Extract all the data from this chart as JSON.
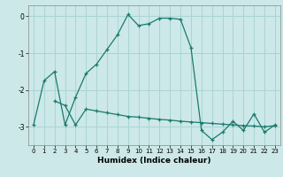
{
  "title": "",
  "xlabel": "Humidex (Indice chaleur)",
  "bg_color": "#cce8e8",
  "line_color": "#1a7a6e",
  "grid_color": "#aad4d4",
  "xlim": [
    -0.5,
    23.5
  ],
  "ylim": [
    -3.5,
    0.3
  ],
  "yticks": [
    0,
    -1,
    -2,
    -3
  ],
  "xticks": [
    0,
    1,
    2,
    3,
    4,
    5,
    6,
    7,
    8,
    9,
    10,
    11,
    12,
    13,
    14,
    15,
    16,
    17,
    18,
    19,
    20,
    21,
    22,
    23
  ],
  "line1_x": [
    0,
    1,
    2,
    3,
    4,
    5,
    6,
    7,
    8,
    9,
    10,
    11,
    12,
    13,
    14,
    15,
    16,
    17,
    18,
    19,
    20,
    21,
    22,
    23
  ],
  "line1_y": [
    -2.95,
    -1.75,
    -1.5,
    -2.95,
    -2.2,
    -1.55,
    -1.3,
    -0.9,
    -0.5,
    0.05,
    -0.25,
    -0.2,
    -0.05,
    -0.05,
    -0.08,
    -0.85,
    -3.1,
    -3.35,
    -3.15,
    -2.85,
    -3.1,
    -2.65,
    -3.15,
    -2.95
  ],
  "line2_x": [
    2,
    3,
    4,
    5,
    6,
    7,
    8,
    9,
    10,
    11,
    12,
    13,
    14,
    15,
    16,
    17,
    18,
    19,
    20,
    21,
    22,
    23
  ],
  "line2_y": [
    -2.3,
    -2.42,
    -2.95,
    -2.52,
    -2.57,
    -2.62,
    -2.67,
    -2.72,
    -2.74,
    -2.77,
    -2.8,
    -2.82,
    -2.85,
    -2.87,
    -2.89,
    -2.91,
    -2.93,
    -2.95,
    -2.97,
    -2.98,
    -3.0,
    -2.97
  ]
}
